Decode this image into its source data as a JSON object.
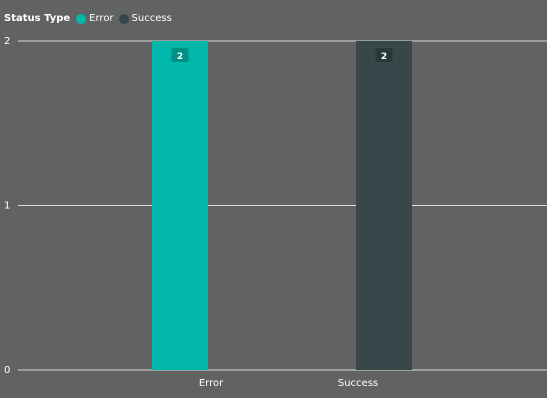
{
  "chart_data": {
    "type": "bar",
    "title": "",
    "xlabel": "",
    "ylabel": "",
    "legend_title": "Status Type",
    "legend_placement": "top-left",
    "categories": [
      "Error",
      "Success"
    ],
    "series": [
      {
        "name": "Error",
        "color": "#01b8aa",
        "values": [
          2,
          null
        ]
      },
      {
        "name": "Success",
        "color": "#374649",
        "values": [
          null,
          2
        ]
      }
    ],
    "ylim": [
      0,
      2
    ],
    "yticks": [
      "0",
      "1",
      "2"
    ],
    "data_labels": [
      "2",
      "2"
    ],
    "grid": true,
    "colors": {
      "background": "#616262",
      "gridline": "#d8d8d8",
      "text": "#ffffff"
    }
  }
}
